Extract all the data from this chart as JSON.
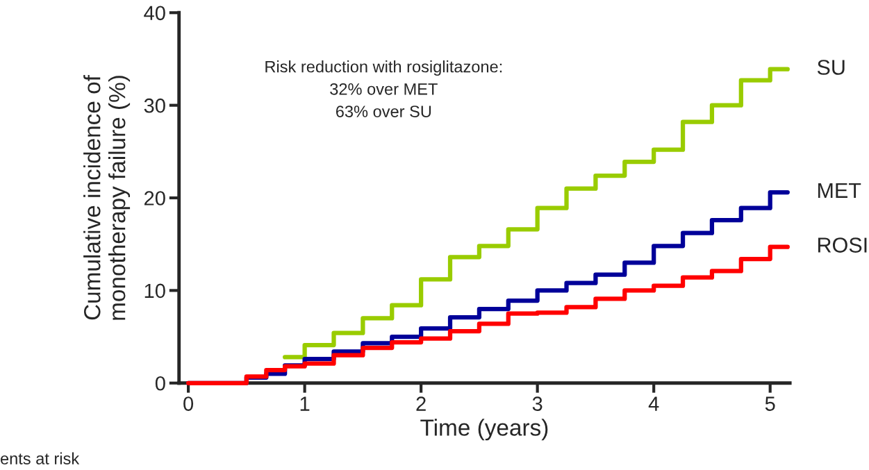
{
  "chart_data": {
    "type": "step",
    "xlabel": "Time (years)",
    "ylabel": "Cumulative incidence of\nmonotherapy failure (%)",
    "annotations": [
      "Risk reduction with rosiglitazone:\n32% over MET\n63% over SU",
      "ents at risk"
    ],
    "line_style": "solid",
    "xlim": [
      -0.08,
      5.17
    ],
    "xticks": [
      0,
      1,
      2,
      3,
      4,
      5
    ],
    "ylim": [
      0,
      40
    ],
    "yticks": [
      0,
      10,
      20,
      30,
      40
    ],
    "series": [
      {
        "name": "SU",
        "color": "#99cc00",
        "x": [
          0.83,
          1.0,
          1.25,
          1.5,
          1.75,
          2.0,
          2.25,
          2.5,
          2.75,
          3.0,
          3.25,
          3.5,
          3.75,
          4.0,
          4.25,
          4.5,
          4.75,
          5.0,
          5.15
        ],
        "values": [
          2.8,
          4.1,
          5.4,
          7.0,
          8.4,
          11.2,
          13.6,
          14.8,
          16.6,
          18.9,
          21.0,
          22.4,
          23.9,
          25.2,
          28.2,
          30.0,
          32.7,
          33.9,
          33.9
        ]
      },
      {
        "name": "MET",
        "color": "#000099",
        "x": [
          0,
          0.5,
          0.67,
          0.83,
          1.0,
          1.25,
          1.5,
          1.75,
          2.0,
          2.25,
          2.5,
          2.75,
          3.0,
          3.25,
          3.5,
          3.75,
          4.0,
          4.25,
          4.5,
          4.75,
          5.0,
          5.15
        ],
        "values": [
          0,
          0.6,
          1.0,
          1.9,
          2.6,
          3.4,
          4.3,
          5.0,
          5.9,
          7.1,
          8.0,
          8.9,
          10.0,
          10.8,
          11.7,
          13.0,
          14.8,
          16.2,
          17.6,
          18.9,
          20.6,
          20.6
        ]
      },
      {
        "name": "ROSI",
        "color": "#ff0000",
        "x": [
          0,
          0.5,
          0.67,
          0.83,
          1.0,
          1.25,
          1.5,
          1.75,
          2.0,
          2.25,
          2.5,
          2.75,
          3.0,
          3.25,
          3.5,
          3.75,
          4.0,
          4.25,
          4.5,
          4.75,
          5.0,
          5.15
        ],
        "values": [
          0,
          0.7,
          1.4,
          1.8,
          2.1,
          3.0,
          3.8,
          4.4,
          4.8,
          5.6,
          6.4,
          7.5,
          7.6,
          8.2,
          9.1,
          10.0,
          10.5,
          11.4,
          12.1,
          13.4,
          14.7,
          14.7
        ]
      }
    ]
  }
}
